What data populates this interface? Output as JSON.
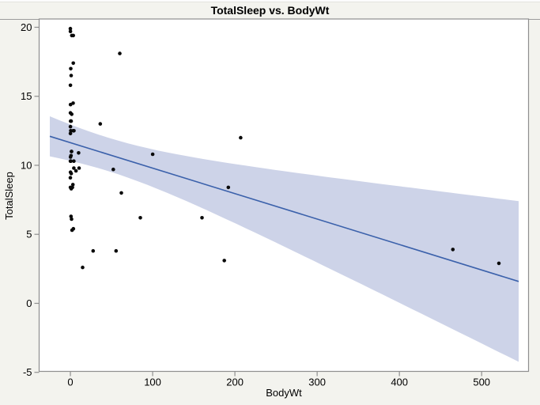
{
  "chart_data": {
    "type": "scatter",
    "title": "TotalSleep vs. BodyWt",
    "xlabel": "BodyWt",
    "ylabel": "TotalSleep",
    "xlim": [
      -38,
      557
    ],
    "ylim": [
      -4.93,
      20.6
    ],
    "x_ticks": [
      0,
      100,
      200,
      300,
      400,
      500
    ],
    "y_ticks": [
      20,
      15,
      10,
      5,
      0,
      -5
    ],
    "grid": false,
    "legend": "none",
    "point_color": "#0a0a0a",
    "plot_bg": "#ffffff",
    "frame_color": "#8f8f8f",
    "points": [
      [
        0.005,
        9.1
      ],
      [
        0.01,
        19.9
      ],
      [
        0.023,
        19.7
      ],
      [
        0.023,
        12.3
      ],
      [
        0.048,
        12.8
      ],
      [
        0.06,
        10.3
      ],
      [
        0.075,
        8.4
      ],
      [
        0.101,
        13.8
      ],
      [
        0.104,
        15.8
      ],
      [
        0.12,
        14.4
      ],
      [
        0.122,
        10.6
      ],
      [
        0.2,
        9.5
      ],
      [
        0.28,
        13.2
      ],
      [
        0.425,
        12.5
      ],
      [
        0.48,
        17.0
      ],
      [
        0.55,
        10.3
      ],
      [
        0.75,
        6.3
      ],
      [
        0.785,
        10.7
      ],
      [
        0.9,
        13.2
      ],
      [
        0.92,
        16.5
      ],
      [
        1.0,
        8.3
      ],
      [
        1.04,
        9.4
      ],
      [
        1.35,
        11.0
      ],
      [
        1.4,
        11.0
      ],
      [
        1.41,
        6.1
      ],
      [
        1.62,
        13.7
      ],
      [
        1.7,
        19.4
      ],
      [
        2.0,
        5.3
      ],
      [
        2.5,
        8.4
      ],
      [
        3.0,
        8.6
      ],
      [
        3.3,
        14.5
      ],
      [
        3.385,
        12.5
      ],
      [
        3.5,
        17.4
      ],
      [
        3.5,
        19.4
      ],
      [
        3.6,
        5.4
      ],
      [
        4.19,
        10.3
      ],
      [
        4.235,
        9.8
      ],
      [
        4.288,
        12.5
      ],
      [
        6.8,
        9.6
      ],
      [
        10.0,
        10.9
      ],
      [
        10.55,
        9.8
      ],
      [
        14.83,
        2.6
      ],
      [
        27.66,
        3.8
      ],
      [
        36.33,
        13.0
      ],
      [
        52.16,
        9.7
      ],
      [
        55.5,
        3.8
      ],
      [
        60.0,
        18.1
      ],
      [
        62.0,
        8.0
      ],
      [
        85.0,
        6.2
      ],
      [
        100.0,
        10.8
      ],
      [
        160.0,
        6.2
      ],
      [
        187.1,
        3.1
      ],
      [
        192.0,
        8.4
      ],
      [
        207.0,
        12.0
      ],
      [
        465.0,
        3.9
      ],
      [
        521.0,
        2.9
      ]
    ],
    "fit_line": {
      "intercept": 11.64,
      "slope": -0.01845,
      "x_start": -25,
      "x_end": 545,
      "color": "#3b61ab",
      "width": 1.6
    },
    "confidence_band": {
      "scale": 8.64,
      "base": 0.0196,
      "x_mean": 45,
      "sxx": 575000,
      "color": "#cdd3e8"
    }
  }
}
